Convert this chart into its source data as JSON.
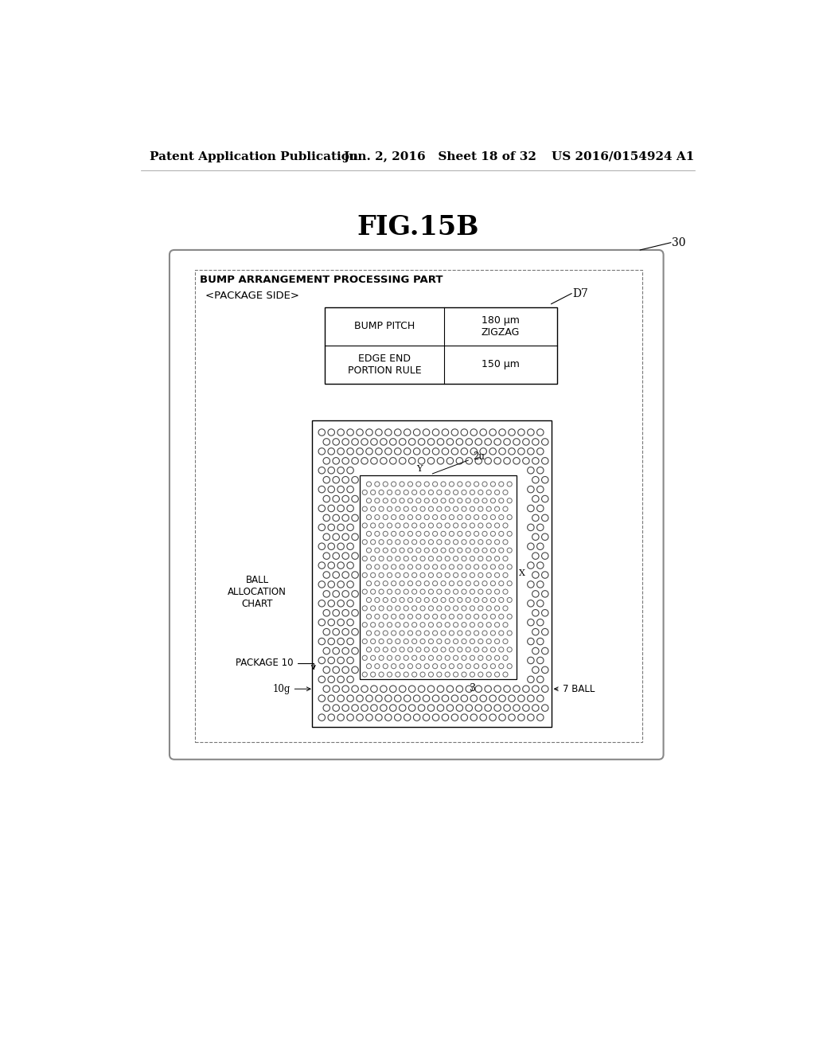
{
  "title": "FIG.15B",
  "header_left": "Patent Application Publication",
  "header_mid": "Jun. 2, 2016   Sheet 18 of 32",
  "header_right": "US 2016/0154924 A1",
  "outer_box_label": "30",
  "inner_box_title": "BUMP ARRANGEMENT PROCESSING PART",
  "inner_box_subtitle": "<PACKAGE SIDE>",
  "table_label": "D7",
  "table_row1_left": "BUMP PITCH",
  "table_row1_right": "180 μm\nZIGZAG",
  "table_row2_left": "EDGE END\nPORTION RULE",
  "table_row2_right": "150 μm",
  "ball_chart_label": "BALL\nALLOCATION\nCHART",
  "ball_chart_id": "10g",
  "package_label": "PACKAGE 10",
  "region_label": "2u",
  "region_inner_label_x": "X",
  "region_inner_label_y": "Y",
  "region_number": "3",
  "ball_label": "7 BALL",
  "bg_color": "#ffffff",
  "text_color": "#000000",
  "box_color": "#000000",
  "dot_edge_color": "#444444",
  "dot_inner_edge_color": "#666666"
}
